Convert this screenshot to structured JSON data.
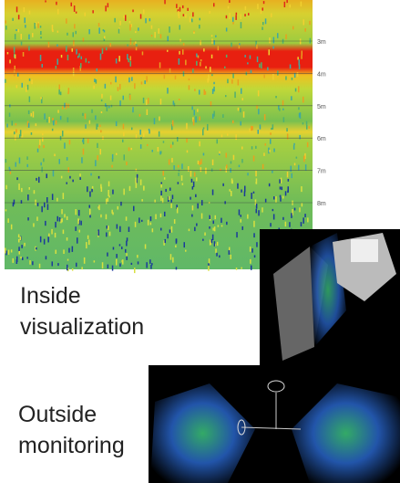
{
  "echogram": {
    "depth_labels": [
      "3m",
      "4m",
      "5m",
      "6m",
      "7m",
      "8m"
    ]
  },
  "captions": {
    "inside": [
      "Inside",
      "visualization"
    ],
    "outside": [
      "Outside",
      "monitoring"
    ]
  }
}
